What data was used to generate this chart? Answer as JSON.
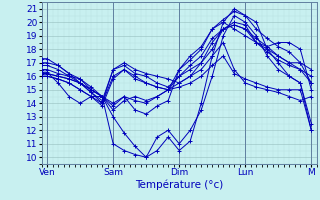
{
  "xlabel": "Température (°c)",
  "bg_color": "#c8f0f0",
  "grid_color_major": "#a0c8c8",
  "grid_color_minor": "#b8dede",
  "line_color": "#0000bb",
  "xlim": [
    0,
    100
  ],
  "ylim": [
    9.5,
    21.5
  ],
  "yticks": [
    10,
    11,
    12,
    13,
    14,
    15,
    16,
    17,
    18,
    19,
    20,
    21
  ],
  "xtick_positions": [
    2,
    26,
    50,
    74,
    98
  ],
  "xtick_labels": [
    "Ven",
    "Sam",
    "Dim",
    "Lun",
    "M"
  ],
  "vlines": [
    2,
    26,
    50,
    74,
    98
  ],
  "series": [
    [
      0,
      17.3,
      2,
      17.3,
      6,
      16.8,
      10,
      16.2,
      14,
      15.8,
      18,
      15.0,
      22,
      14.5,
      26,
      13.0,
      30,
      11.8,
      34,
      10.8,
      38,
      10.0,
      42,
      10.5,
      46,
      11.5,
      50,
      10.5,
      54,
      11.2,
      58,
      14.0,
      62,
      17.5,
      66,
      20.0,
      70,
      21.0,
      74,
      20.5,
      78,
      20.0,
      82,
      18.0,
      86,
      17.0,
      90,
      16.0,
      94,
      15.5,
      98,
      12.0
    ],
    [
      0,
      16.2,
      2,
      16.2,
      6,
      16.0,
      10,
      15.8,
      14,
      15.5,
      18,
      15.0,
      22,
      14.5,
      26,
      11.0,
      30,
      10.5,
      34,
      10.2,
      38,
      10.0,
      42,
      11.5,
      46,
      12.0,
      50,
      11.0,
      54,
      12.0,
      58,
      13.5,
      62,
      16.0,
      66,
      19.0,
      70,
      20.5,
      74,
      20.0,
      78,
      19.0,
      82,
      17.5,
      86,
      16.5,
      90,
      16.0,
      94,
      15.5,
      98,
      12.5
    ],
    [
      0,
      16.0,
      2,
      16.0,
      6,
      15.8,
      10,
      15.5,
      14,
      15.0,
      18,
      14.5,
      22,
      14.0,
      26,
      16.0,
      30,
      16.5,
      34,
      15.8,
      38,
      15.5,
      42,
      15.2,
      46,
      15.0,
      50,
      16.0,
      54,
      16.5,
      58,
      17.0,
      62,
      18.0,
      66,
      19.5,
      70,
      19.8,
      74,
      19.5,
      78,
      18.8,
      82,
      18.2,
      86,
      17.5,
      90,
      17.0,
      94,
      16.5,
      98,
      16.0
    ],
    [
      0,
      16.5,
      2,
      16.5,
      6,
      16.2,
      10,
      16.0,
      14,
      15.5,
      18,
      14.8,
      22,
      14.2,
      26,
      16.5,
      30,
      17.0,
      34,
      16.5,
      38,
      16.2,
      42,
      16.0,
      46,
      15.8,
      50,
      15.5,
      54,
      16.0,
      58,
      17.0,
      62,
      18.5,
      66,
      19.5,
      70,
      20.0,
      74,
      19.8,
      78,
      18.5,
      82,
      17.8,
      86,
      17.2,
      90,
      16.8,
      94,
      16.5,
      98,
      15.5
    ],
    [
      0,
      16.8,
      2,
      16.8,
      6,
      16.5,
      10,
      16.0,
      14,
      15.8,
      18,
      15.2,
      22,
      14.5,
      26,
      14.0,
      30,
      14.5,
      34,
      14.2,
      38,
      14.0,
      42,
      14.5,
      46,
      15.0,
      50,
      15.5,
      54,
      16.0,
      58,
      16.5,
      62,
      17.5,
      66,
      18.5,
      70,
      16.5,
      74,
      15.5,
      78,
      15.2,
      82,
      15.0,
      86,
      14.8,
      90,
      14.5,
      94,
      14.2,
      98,
      14.5
    ],
    [
      0,
      17.0,
      2,
      17.0,
      6,
      16.8,
      10,
      16.2,
      14,
      15.5,
      18,
      14.8,
      22,
      14.0,
      26,
      16.5,
      30,
      16.8,
      34,
      16.2,
      38,
      16.0,
      42,
      15.5,
      46,
      15.2,
      50,
      16.0,
      54,
      16.8,
      58,
      17.5,
      62,
      18.8,
      66,
      19.5,
      70,
      19.8,
      74,
      19.5,
      78,
      18.5,
      82,
      18.2,
      86,
      18.5,
      90,
      18.5,
      94,
      18.0,
      98,
      15.0
    ],
    [
      0,
      16.2,
      2,
      16.2,
      6,
      16.0,
      10,
      15.8,
      14,
      15.5,
      18,
      15.0,
      22,
      14.5,
      26,
      13.5,
      30,
      14.2,
      34,
      14.5,
      38,
      14.2,
      42,
      14.5,
      46,
      15.0,
      50,
      15.2,
      54,
      15.5,
      58,
      16.0,
      62,
      16.8,
      66,
      17.5,
      70,
      16.2,
      74,
      15.8,
      78,
      15.5,
      82,
      15.2,
      86,
      15.0,
      90,
      15.0,
      94,
      15.0,
      98,
      12.0
    ],
    [
      0,
      16.0,
      2,
      16.0,
      6,
      15.8,
      10,
      15.5,
      14,
      15.0,
      18,
      14.5,
      22,
      13.8,
      26,
      15.8,
      30,
      16.5,
      34,
      16.0,
      38,
      15.5,
      42,
      15.2,
      46,
      15.0,
      50,
      16.5,
      54,
      17.2,
      58,
      18.0,
      62,
      19.5,
      66,
      20.2,
      70,
      20.8,
      74,
      20.5,
      78,
      19.5,
      82,
      18.8,
      86,
      18.2,
      90,
      17.8,
      94,
      17.0,
      98,
      15.5
    ],
    [
      0,
      16.3,
      2,
      16.3,
      6,
      15.5,
      10,
      14.5,
      14,
      14.0,
      18,
      14.5,
      22,
      14.5,
      26,
      13.8,
      30,
      14.5,
      34,
      13.5,
      38,
      13.2,
      42,
      13.8,
      46,
      14.2,
      50,
      16.5,
      54,
      17.5,
      58,
      18.2,
      62,
      19.5,
      66,
      20.0,
      70,
      19.5,
      74,
      19.0,
      78,
      18.5,
      82,
      18.0,
      86,
      17.5,
      90,
      17.0,
      94,
      17.0,
      98,
      16.5
    ]
  ]
}
